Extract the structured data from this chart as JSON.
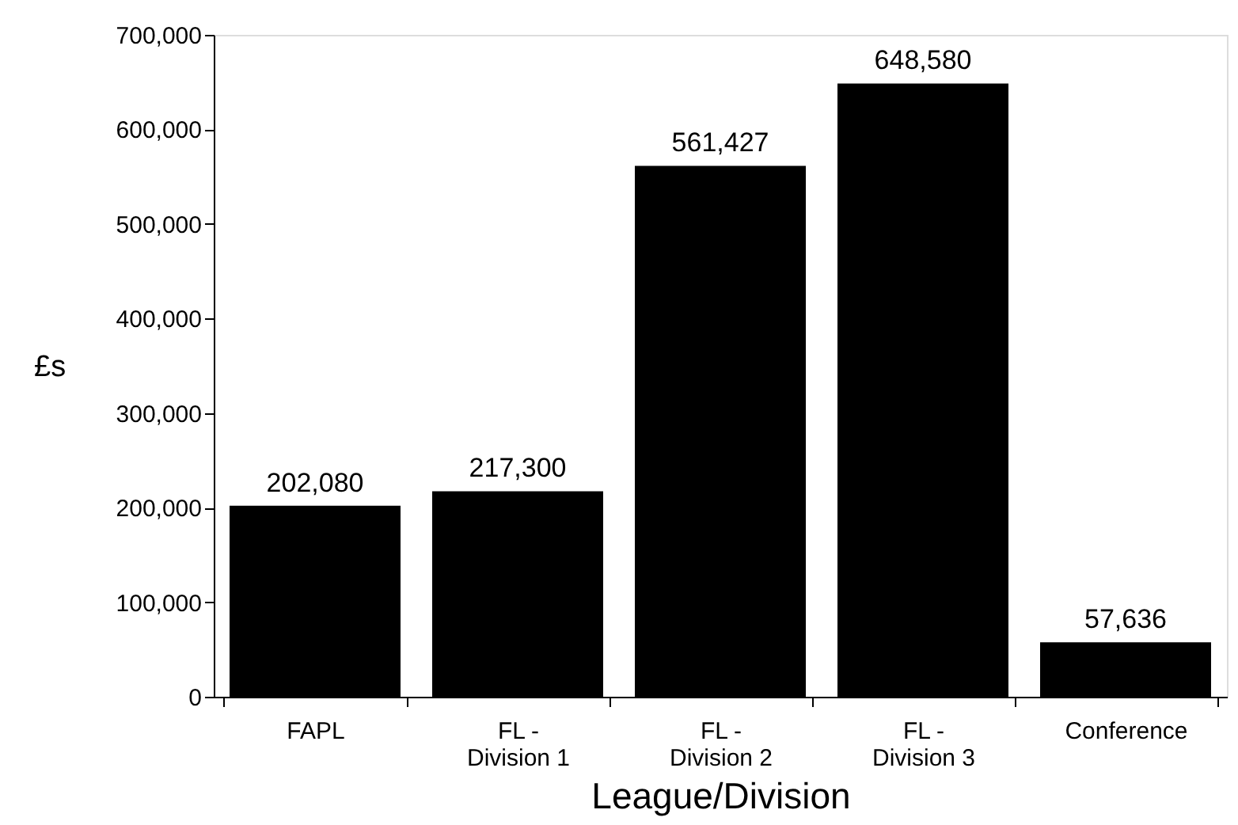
{
  "chart_data": {
    "type": "bar",
    "xlabel": "League/Division",
    "ylabel": "£s",
    "categories": [
      "FAPL",
      "FL - Division 1",
      "FL - Division 2",
      "FL - Division 3",
      "Conference"
    ],
    "values": [
      202080,
      217300,
      561427,
      648580,
      57636
    ],
    "color": "#000000",
    "value_labels": [
      "202,080",
      "217,300",
      "561,427",
      "648,580",
      "57,636"
    ],
    "ylim": [
      0,
      700000
    ],
    "yticks": [
      {
        "value": 0,
        "label": "0"
      },
      {
        "value": 100000,
        "label": "100,000"
      },
      {
        "value": 200000,
        "label": "200,000"
      },
      {
        "value": 300000,
        "label": "300,000"
      },
      {
        "value": 400000,
        "label": "400,000"
      },
      {
        "value": 500000,
        "label": "500,000"
      },
      {
        "value": 600000,
        "label": "600,000"
      },
      {
        "value": 700000,
        "label": "700,000"
      }
    ],
    "grid": false
  }
}
